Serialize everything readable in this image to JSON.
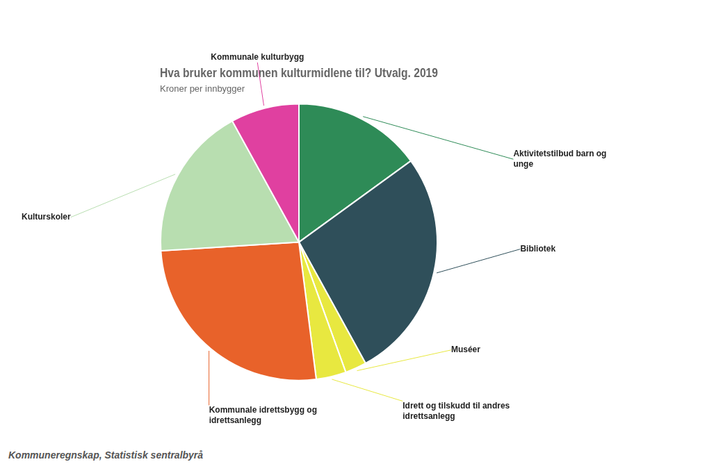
{
  "chart_data": {
    "type": "pie",
    "title": "Hva bruker kommunen kulturmidlene til? Utvalg. 2019",
    "subtitle": "Kroner per innbygger",
    "annotations": [
      "Kommuneregnskap, Statistisk sentralbyrå"
    ],
    "categories": [
      "Aktivitetstilbud barn og\nunge",
      "Bibliotek",
      "Muséer",
      "Idrett og tilskudd til andres\nidrettsanlegg",
      "Kommunale idrettsbygg og\nidrettsanlegg",
      "Kulturskoler",
      "Kommunale kulturbygg"
    ],
    "values": [
      15,
      27,
      2.5,
      3.5,
      26,
      18,
      8
    ],
    "colors": [
      "#2e8b57",
      "#2f4f5a",
      "#e8e840",
      "#e8e840",
      "#e8622a",
      "#b8deb0",
      "#e040a0"
    ]
  }
}
